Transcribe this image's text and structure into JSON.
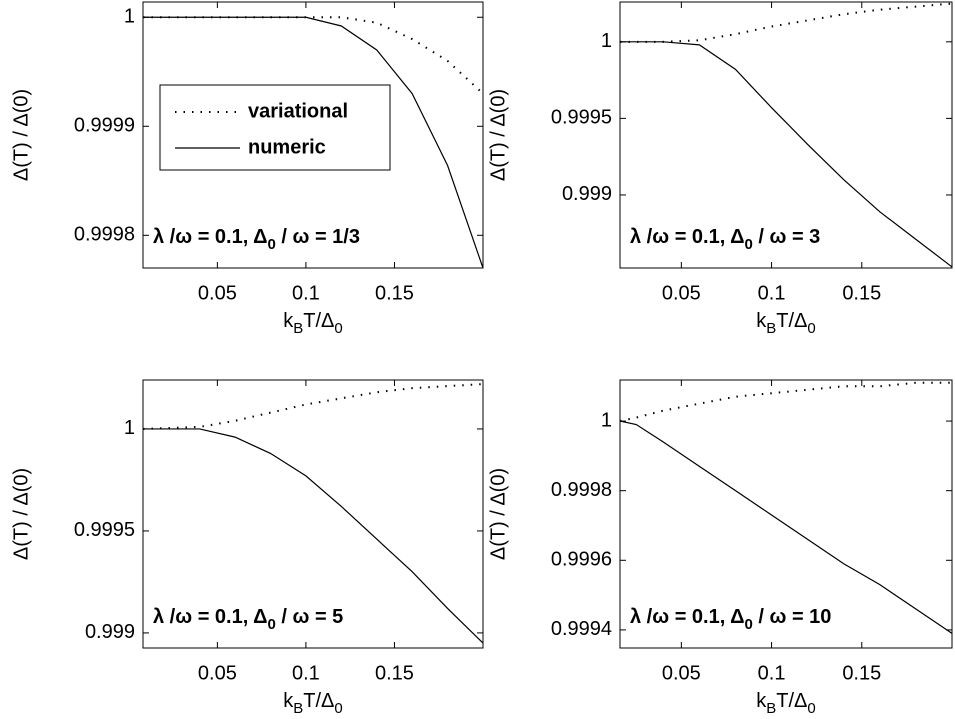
{
  "chart_data": [
    {
      "type": "line",
      "x": [
        0.008,
        0.04,
        0.06,
        0.08,
        0.1,
        0.12,
        0.14,
        0.16,
        0.18,
        0.2
      ],
      "series": [
        {
          "name": "variational",
          "color": "#000000",
          "style": "dotted",
          "values": [
            1,
            1,
            1,
            1,
            1,
            1,
            0.999995,
            0.99998,
            0.99996,
            0.99993
          ]
        },
        {
          "name": "numeric",
          "color": "#000000",
          "style": "solid",
          "values": [
            1,
            1,
            1,
            1,
            1,
            0.999992,
            0.99997,
            0.99993,
            0.999864,
            0.99977
          ]
        }
      ],
      "legend": true,
      "legend_position": "upper-left",
      "xlim": [
        0.008,
        0.2
      ],
      "xticks": [
        0.05,
        0.1,
        0.15
      ],
      "ylim": [
        0.99977,
        1.000014
      ],
      "yticks": [
        0.9998,
        0.9999,
        1
      ],
      "x_label": [
        "k",
        "B",
        "T/Δ",
        "0"
      ],
      "y_label": "Δ(T) / Δ(0)",
      "annotation": [
        "λ /ω = 0.1,  Δ",
        "0",
        " / ω = 1/3"
      ]
    },
    {
      "type": "line",
      "x": [
        0.016,
        0.04,
        0.06,
        0.08,
        0.1,
        0.12,
        0.14,
        0.16,
        0.18,
        0.2
      ],
      "series": [
        {
          "color": "#000000",
          "style": "dotted",
          "values": [
            1,
            1,
            1.00001,
            1.00005,
            1.0001,
            1.00014,
            1.00018,
            1.00021,
            1.00023,
            1.00025
          ]
        },
        {
          "color": "#000000",
          "style": "solid",
          "values": [
            1,
            1,
            0.99998,
            0.99982,
            0.99957,
            0.99933,
            0.9991,
            0.99889,
            0.99871,
            0.99853
          ]
        }
      ],
      "legend": false,
      "xlim": [
        0.016,
        0.2
      ],
      "xticks": [
        0.05,
        0.1,
        0.15
      ],
      "ylim": [
        0.998523,
        1.00026
      ],
      "yticks": [
        0.999,
        0.9995,
        1
      ],
      "x_label": [
        "k",
        "B",
        "T/Δ",
        "0"
      ],
      "y_label": "Δ(T) / Δ(0)",
      "annotation": [
        "λ /ω = 0.1,  Δ",
        "0",
        " / ω = 3"
      ]
    },
    {
      "type": "line",
      "x": [
        0.008,
        0.04,
        0.06,
        0.08,
        0.1,
        0.12,
        0.14,
        0.16,
        0.18,
        0.2
      ],
      "series": [
        {
          "color": "#000000",
          "style": "dotted",
          "values": [
            1,
            1.00001,
            1.00004,
            1.00008,
            1.00012,
            1.00015,
            1.00018,
            1.0002,
            1.00021,
            1.00022
          ]
        },
        {
          "color": "#000000",
          "style": "solid",
          "values": [
            1,
            1,
            0.99996,
            0.99988,
            0.99977,
            0.99962,
            0.99946,
            0.9993,
            0.99912,
            0.99895
          ]
        }
      ],
      "legend": false,
      "xlim": [
        0.008,
        0.2
      ],
      "xticks": [
        0.05,
        0.1,
        0.15
      ],
      "ylim": [
        0.998926,
        1.00024
      ],
      "yticks": [
        0.999,
        0.9995,
        1
      ],
      "x_label": [
        "k",
        "B",
        "T/Δ",
        "0"
      ],
      "y_label": "Δ(T) / Δ(0)",
      "annotation": [
        "λ /ω = 0.1,  Δ",
        "0",
        " / ω = 5"
      ]
    },
    {
      "type": "line",
      "x": [
        0.016,
        0.025,
        0.04,
        0.06,
        0.08,
        0.1,
        0.12,
        0.14,
        0.16,
        0.18,
        0.2
      ],
      "series": [
        {
          "color": "#000000",
          "style": "dotted",
          "values": [
            1,
            1.00001,
            1.00003,
            1.00005,
            1.00007,
            1.00008,
            1.00009,
            1.0001,
            1.0001,
            1.00011,
            1.00011
          ]
        },
        {
          "color": "#000000",
          "style": "solid",
          "values": [
            1,
            0.99999,
            0.99994,
            0.99987,
            0.9998,
            0.99973,
            0.99966,
            0.99959,
            0.99953,
            0.99946,
            0.99939
          ]
        }
      ],
      "legend": false,
      "xlim": [
        0.016,
        0.2
      ],
      "xticks": [
        0.05,
        0.1,
        0.15
      ],
      "ylim": [
        0.999348,
        1.000118
      ],
      "yticks": [
        0.9994,
        0.9996,
        0.9998,
        1
      ],
      "x_label": [
        "k",
        "B",
        "T/Δ",
        "0"
      ],
      "y_label": "Δ(T) / Δ(0)",
      "annotation": [
        "λ /ω = 0.1,  Δ",
        "0",
        " / ω = 10"
      ]
    }
  ]
}
